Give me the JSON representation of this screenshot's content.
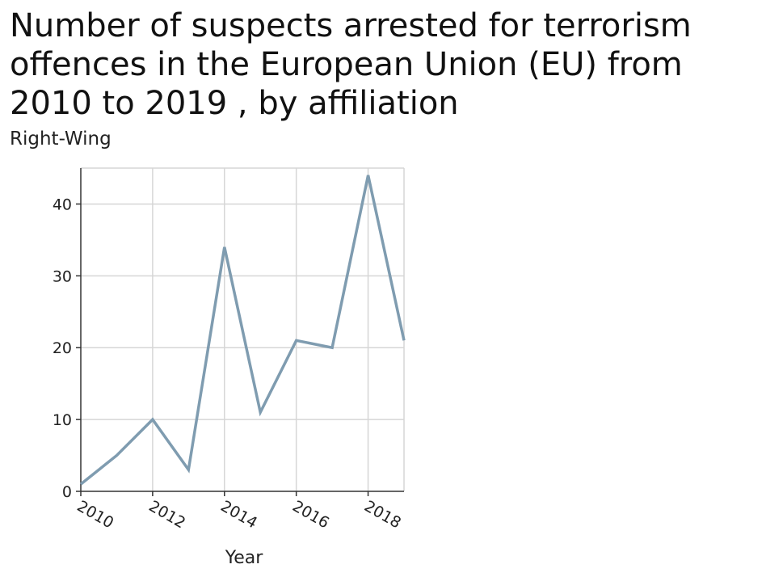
{
  "chart_data": {
    "type": "line",
    "title": "Number of suspects arrested for terrorism offences in the European Union (EU) from 2010 to 2019 , by affiliation",
    "ylabel": "Right-Wing",
    "xlabel": "Year",
    "x": [
      2010,
      2011,
      2012,
      2013,
      2014,
      2015,
      2016,
      2017,
      2018,
      2019
    ],
    "series": [
      {
        "values": [
          1,
          5,
          10,
          3,
          34,
          11,
          21,
          20,
          44,
          21
        ]
      }
    ],
    "xlim": [
      2010,
      2019
    ],
    "ylim": [
      0,
      45
    ],
    "xticks": [
      2010,
      2012,
      2014,
      2016,
      2018
    ],
    "xtick_labels": [
      "2010",
      "2012",
      "2014",
      "2016",
      "2018"
    ],
    "yticks": [
      0,
      10,
      20,
      30,
      40
    ],
    "ytick_labels": [
      "0",
      "10",
      "20",
      "30",
      "40"
    ],
    "grid": true,
    "line_color": "#7f9cb0",
    "grid_color": "#d6d6d6",
    "axis_color": "#333333"
  }
}
